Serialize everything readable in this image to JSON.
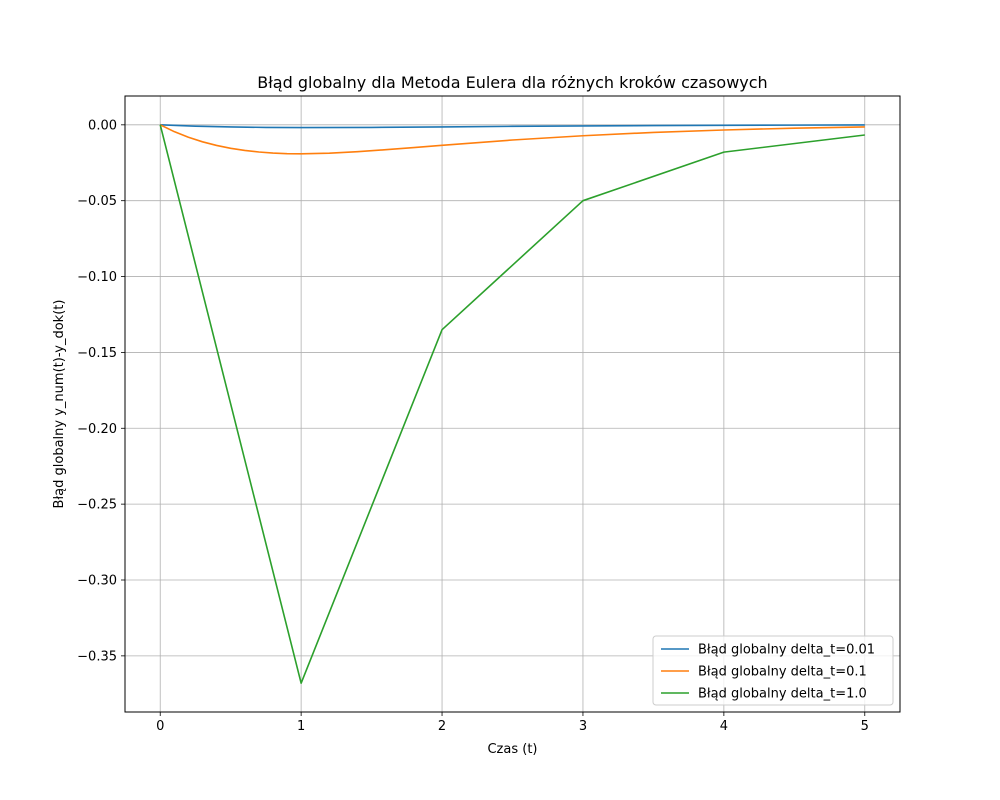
{
  "chart_data": {
    "type": "line",
    "title": "Błąd globalny dla Metoda Eulera dla różnych kroków czasowych",
    "xlabel": "Czas (t)",
    "ylabel": "Błąd globalny y_num(t)-y_dok(t)",
    "xlim": [
      -0.25,
      5.25
    ],
    "ylim": [
      -0.387,
      0.019
    ],
    "grid": true,
    "legend_position": "lower right",
    "xticks": [
      {
        "value": 0,
        "label": "0"
      },
      {
        "value": 1,
        "label": "1"
      },
      {
        "value": 2,
        "label": "2"
      },
      {
        "value": 3,
        "label": "3"
      },
      {
        "value": 4,
        "label": "4"
      },
      {
        "value": 5,
        "label": "5"
      }
    ],
    "yticks": [
      {
        "value": 0.0,
        "label": "0.00"
      },
      {
        "value": -0.05,
        "label": "−0.05"
      },
      {
        "value": -0.1,
        "label": "−0.10"
      },
      {
        "value": -0.15,
        "label": "−0.15"
      },
      {
        "value": -0.2,
        "label": "−0.20"
      },
      {
        "value": -0.25,
        "label": "−0.25"
      },
      {
        "value": -0.3,
        "label": "−0.30"
      },
      {
        "value": -0.35,
        "label": "−0.35"
      }
    ],
    "series": [
      {
        "name": "Błąd globalny delta_t=0.01",
        "color": "#1f77b4",
        "x": [
          0,
          0.25,
          0.5,
          0.75,
          1.0,
          1.5,
          2.0,
          2.5,
          3.0,
          3.5,
          4.0,
          4.5,
          5.0
        ],
        "y": [
          0,
          -0.0009,
          -0.0014,
          -0.0017,
          -0.0018,
          -0.0017,
          -0.0014,
          -0.001,
          -0.0007,
          -0.0005,
          -0.0003,
          -0.0002,
          -0.0001
        ]
      },
      {
        "name": "Błąd globalny delta_t=0.1",
        "color": "#ff7f0e",
        "x": [
          0,
          0.1,
          0.2,
          0.3,
          0.4,
          0.5,
          0.6,
          0.7,
          0.8,
          0.9,
          1.0,
          1.2,
          1.4,
          1.6,
          1.8,
          2.0,
          2.5,
          3.0,
          3.5,
          4.0,
          4.5,
          5.0
        ],
        "y": [
          0,
          -0.0045,
          -0.0082,
          -0.0112,
          -0.0136,
          -0.0155,
          -0.0169,
          -0.0179,
          -0.0186,
          -0.019,
          -0.0191,
          -0.0187,
          -0.0177,
          -0.0164,
          -0.015,
          -0.0135,
          -0.01,
          -0.0072,
          -0.005,
          -0.0034,
          -0.0022,
          -0.0014
        ]
      },
      {
        "name": "Błąd globalny delta_t=1.0",
        "color": "#2ca02c",
        "x": [
          0,
          1,
          2,
          3,
          4,
          5
        ],
        "y": [
          0,
          -0.368,
          -0.135,
          -0.05,
          -0.018,
          -0.0067
        ]
      }
    ]
  }
}
